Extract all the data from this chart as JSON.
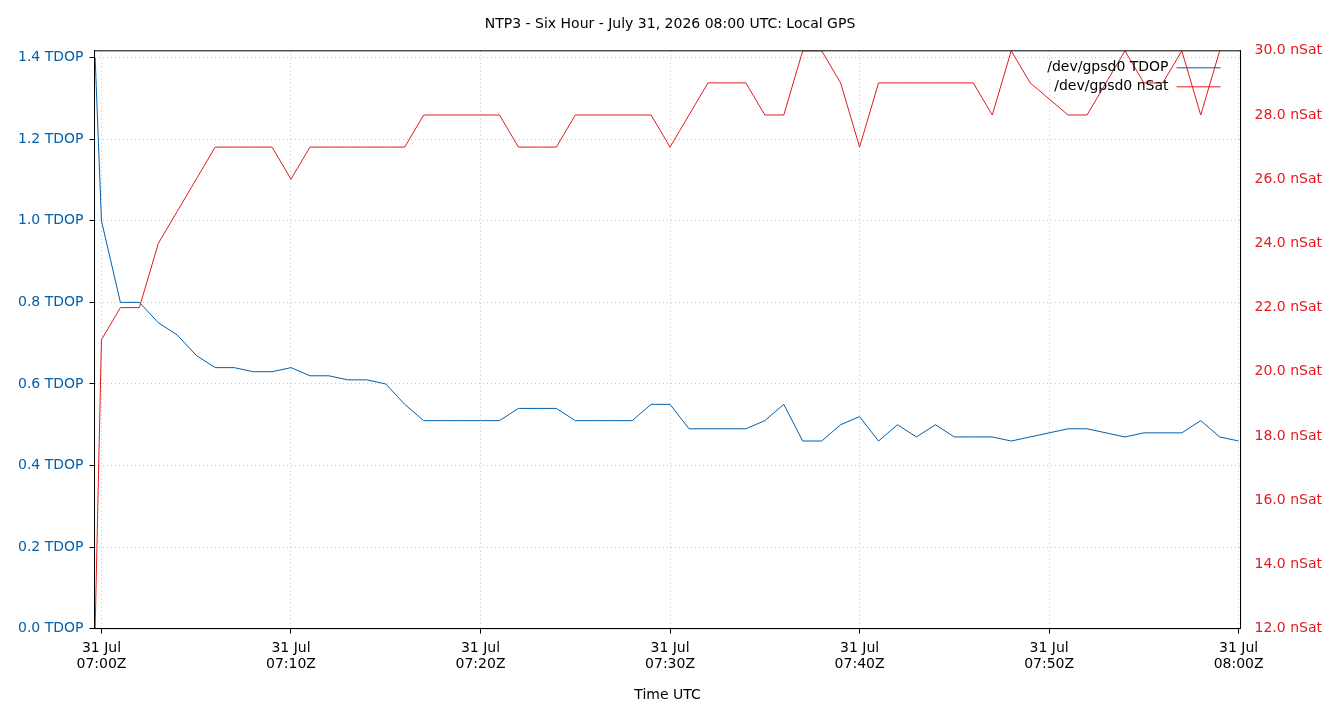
{
  "chart_data": {
    "type": "line",
    "title": "NTP3 - Six Hour - July 31, 2026 08:00 UTC: Local GPS",
    "xlabel": "Time UTC",
    "x": [
      "2026-07-31T06:59:40",
      "2026-07-31T07:00",
      "2026-07-31T07:01",
      "2026-07-31T07:02",
      "2026-07-31T07:03",
      "2026-07-31T07:04",
      "2026-07-31T07:05",
      "2026-07-31T07:06",
      "2026-07-31T07:07",
      "2026-07-31T07:08",
      "2026-07-31T07:09",
      "2026-07-31T07:10",
      "2026-07-31T07:11",
      "2026-07-31T07:12",
      "2026-07-31T07:13",
      "2026-07-31T07:14",
      "2026-07-31T07:15",
      "2026-07-31T07:16",
      "2026-07-31T07:17",
      "2026-07-31T07:18",
      "2026-07-31T07:19",
      "2026-07-31T07:20",
      "2026-07-31T07:21",
      "2026-07-31T07:22",
      "2026-07-31T07:23",
      "2026-07-31T07:24",
      "2026-07-31T07:25",
      "2026-07-31T07:26",
      "2026-07-31T07:27",
      "2026-07-31T07:28",
      "2026-07-31T07:29",
      "2026-07-31T07:30",
      "2026-07-31T07:31",
      "2026-07-31T07:32",
      "2026-07-31T07:33",
      "2026-07-31T07:34",
      "2026-07-31T07:35",
      "2026-07-31T07:36",
      "2026-07-31T07:37",
      "2026-07-31T07:38",
      "2026-07-31T07:39",
      "2026-07-31T07:40",
      "2026-07-31T07:41",
      "2026-07-31T07:42",
      "2026-07-31T07:43",
      "2026-07-31T07:44",
      "2026-07-31T07:45",
      "2026-07-31T07:46",
      "2026-07-31T07:47",
      "2026-07-31T07:48",
      "2026-07-31T07:49",
      "2026-07-31T07:50",
      "2026-07-31T07:51",
      "2026-07-31T07:52",
      "2026-07-31T07:53",
      "2026-07-31T07:54",
      "2026-07-31T07:55",
      "2026-07-31T07:56",
      "2026-07-31T07:57",
      "2026-07-31T07:58",
      "2026-07-31T07:59",
      "2026-07-31T08:00"
    ],
    "series": [
      {
        "name": "/dev/gpsd0 TDOP",
        "color": "#0060ad",
        "values": [
          1.4,
          1.0,
          0.8,
          0.8,
          0.75,
          0.72,
          0.67,
          0.64,
          0.64,
          0.63,
          0.63,
          0.64,
          0.62,
          0.62,
          0.61,
          0.61,
          0.6,
          0.55,
          0.51,
          0.51,
          0.51,
          0.51,
          0.51,
          0.54,
          0.54,
          0.54,
          0.51,
          0.51,
          0.51,
          0.51,
          0.55,
          0.55,
          0.49,
          0.49,
          0.49,
          0.49,
          0.51,
          0.55,
          0.46,
          0.46,
          0.5,
          0.52,
          0.46,
          0.5,
          0.47,
          0.5,
          0.47,
          0.47,
          0.47,
          0.46,
          0.47,
          0.48,
          0.49,
          0.49,
          0.48,
          0.47,
          0.48,
          0.48,
          0.48,
          0.51,
          0.47,
          0.46
        ]
      },
      {
        "name": "/dev/gpsd0 nSat",
        "color": "#e41a1c",
        "axis": "y2",
        "values": [
          12,
          21,
          22,
          22,
          24,
          25,
          26,
          27,
          27,
          27,
          27,
          26,
          27,
          27,
          27,
          27,
          27,
          27,
          28,
          28,
          28,
          28,
          28,
          27,
          27,
          27,
          28,
          28,
          28,
          28,
          28,
          27,
          28,
          29,
          29,
          29,
          28,
          28,
          30,
          30,
          29,
          27,
          29,
          29,
          29,
          29,
          29,
          29,
          28,
          30,
          29,
          28.5,
          28,
          28,
          29,
          30,
          29,
          29,
          30,
          28,
          30,
          null
        ]
      }
    ],
    "xlim": [
      "2026-07-31T06:59:38",
      "2026-07-31T08:00:06"
    ],
    "xticks": [
      {
        "value": "2026-07-31T07:00",
        "label": "31 Jul\n07:00Z"
      },
      {
        "value": "2026-07-31T07:10",
        "label": "31 Jul\n07:10Z"
      },
      {
        "value": "2026-07-31T07:20",
        "label": "31 Jul\n07:20Z"
      },
      {
        "value": "2026-07-31T07:30",
        "label": "31 Jul\n07:30Z"
      },
      {
        "value": "2026-07-31T07:40",
        "label": "31 Jul\n07:40Z"
      },
      {
        "value": "2026-07-31T07:50",
        "label": "31 Jul\n07:50Z"
      },
      {
        "value": "2026-07-31T08:00",
        "label": "31 Jul\n08:00Z"
      }
    ],
    "ylim": [
      0,
      1.417
    ],
    "yticks": [
      {
        "value": 0,
        "label": "0.0 TDOP"
      },
      {
        "value": 0.2,
        "label": "0.2 TDOP"
      },
      {
        "value": 0.4,
        "label": "0.4 TDOP"
      },
      {
        "value": 0.6,
        "label": "0.6 TDOP"
      },
      {
        "value": 0.8,
        "label": "0.8 TDOP"
      },
      {
        "value": 1.0,
        "label": "1.0 TDOP"
      },
      {
        "value": 1.2,
        "label": "1.2 TDOP"
      },
      {
        "value": 1.4,
        "label": "1.4 TDOP"
      }
    ],
    "y2lim": [
      12,
      30
    ],
    "y2ticks": [
      {
        "value": 12,
        "label": "12.0 nSat"
      },
      {
        "value": 14,
        "label": "14.0 nSat"
      },
      {
        "value": 16,
        "label": "16.0 nSat"
      },
      {
        "value": 18,
        "label": "18.0 nSat"
      },
      {
        "value": 20,
        "label": "20.0 nSat"
      },
      {
        "value": 22,
        "label": "22.0 nSat"
      },
      {
        "value": 24,
        "label": "24.0 nSat"
      },
      {
        "value": 26,
        "label": "26.0 nSat"
      },
      {
        "value": 28,
        "label": "28.0 nSat"
      },
      {
        "value": 30,
        "label": "30.0 nSat"
      }
    ],
    "grid": true,
    "legend": "top right",
    "marker": "none",
    "line_style": "solid"
  }
}
